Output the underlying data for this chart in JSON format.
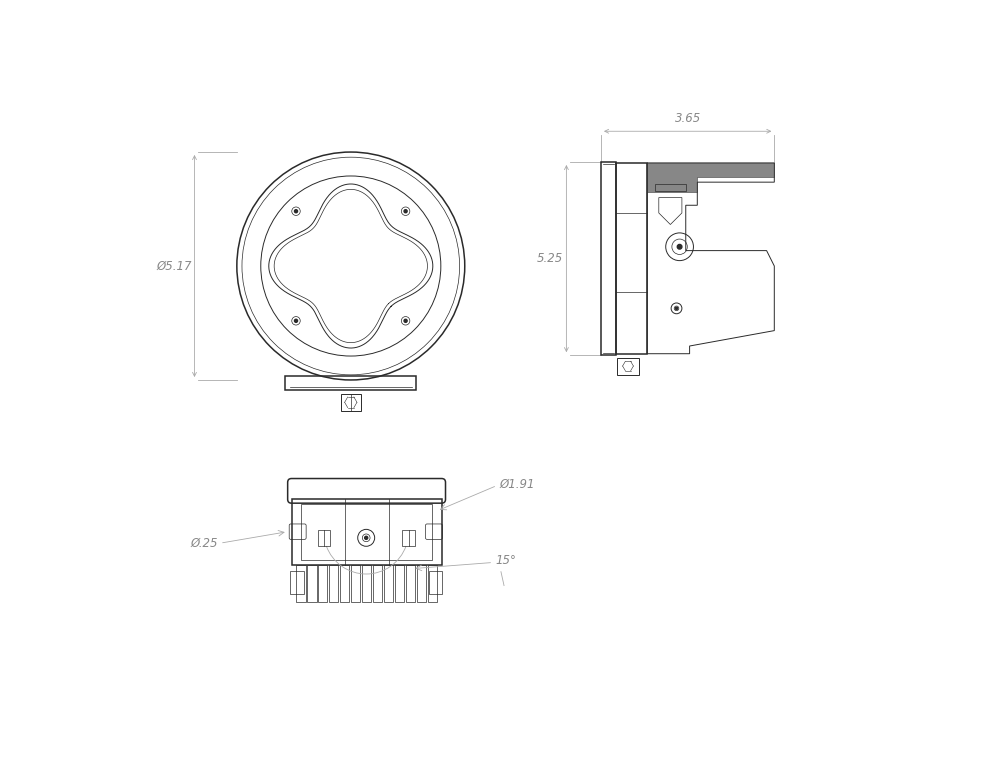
{
  "bg_color": "#ffffff",
  "line_color": "#2a2a2a",
  "dim_color": "#aaaaaa",
  "text_color": "#888888",
  "dim_517": "Ø5.17",
  "dim_365": "3.65",
  "dim_525": "5.25",
  "dim_191": "Ø1.91",
  "dim_025": "Ø.25",
  "dim_15": "15°",
  "lw_main": 1.1,
  "lw_med": 0.7,
  "lw_thin": 0.5,
  "lw_dim": 0.6,
  "fs_dim": 8.5
}
